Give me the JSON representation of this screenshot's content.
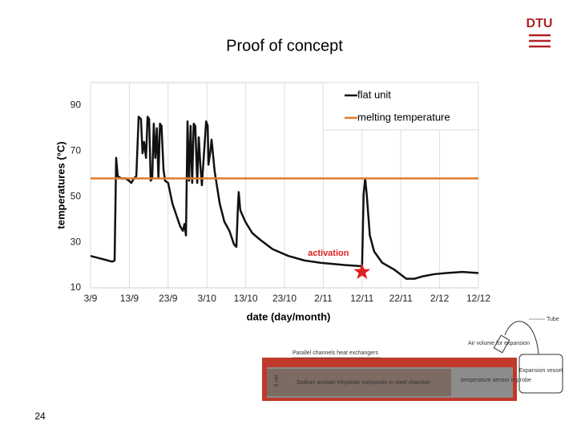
{
  "slide": {
    "title": "Proof of concept",
    "page_number": "24",
    "logo": "DTU"
  },
  "chart_data": {
    "type": "line",
    "ylabel": "temperatures (°C)",
    "xlabel": "date (day/month)",
    "xlim": [
      0,
      100
    ],
    "ylim": [
      10,
      100
    ],
    "xticks": [
      {
        "value": 0,
        "label": "3/9"
      },
      {
        "value": 10,
        "label": "13/9"
      },
      {
        "value": 20,
        "label": "23/9"
      },
      {
        "value": 30,
        "label": "3/10"
      },
      {
        "value": 40,
        "label": "13/10"
      },
      {
        "value": 50,
        "label": "23/10"
      },
      {
        "value": 60,
        "label": "2/11"
      },
      {
        "value": 70,
        "label": "12/11"
      },
      {
        "value": 80,
        "label": "22/11"
      },
      {
        "value": 90,
        "label": "2/12"
      },
      {
        "value": 100,
        "label": "12/12"
      }
    ],
    "yticks": [
      10,
      30,
      50,
      70,
      90
    ],
    "grid": "x",
    "legend": "top-right",
    "series": [
      {
        "name": "flat unit",
        "color": "#111111",
        "x": [
          0,
          5.6,
          6.2,
          6.6,
          7,
          7.9,
          9,
          9.9,
          10.5,
          11.2,
          11.8,
          12.4,
          13,
          13.4,
          13.8,
          14.3,
          14.7,
          15.1,
          15.5,
          15.9,
          16.3,
          16.7,
          17.1,
          17.5,
          17.9,
          18.3,
          18.8,
          19.2,
          20,
          21.1,
          22.1,
          23.1,
          23.8,
          24.2,
          24.6,
          25,
          25.4,
          25.8,
          26.2,
          26.6,
          27,
          27.5,
          27.9,
          28.3,
          28.7,
          29.8,
          30.2,
          30.4,
          30.9,
          31.2,
          32,
          33.3,
          34.5,
          35.8,
          37,
          37.6,
          38,
          38.2,
          38.6,
          39.9,
          41.7,
          43.8,
          46.9,
          51,
          55.2,
          59.3,
          65.5,
          70,
          70.4,
          70.8,
          71.2,
          72,
          73.1,
          75.2,
          78.3,
          81.4,
          83.5,
          85.5,
          88.6,
          91.7,
          95.9,
          100
        ],
        "values": [
          24,
          21.5,
          22,
          67,
          59,
          58,
          58,
          57,
          56,
          58,
          59,
          85,
          84,
          69,
          74,
          67,
          85,
          84,
          57,
          58,
          82,
          67,
          80,
          58,
          82,
          81,
          62,
          57,
          56,
          47,
          42,
          37,
          35,
          38,
          33,
          83,
          57,
          81,
          56,
          82,
          81,
          56,
          76,
          64,
          55,
          83,
          81,
          64,
          70,
          75,
          61,
          47,
          39,
          35,
          29,
          28,
          46,
          52,
          44,
          39,
          34,
          31,
          27,
          24,
          22,
          21,
          20,
          19.5,
          51,
          58,
          51,
          33,
          26,
          21,
          18,
          14,
          14,
          15,
          16,
          16.5,
          17,
          16.5
        ]
      },
      {
        "name": "melting temperature",
        "color": "#e07b28",
        "x": [
          0,
          100
        ],
        "values": [
          58,
          58
        ]
      }
    ],
    "annotations": [
      {
        "text": "activation",
        "x": 70,
        "y": 17,
        "color": "#e02020"
      }
    ]
  },
  "diagram": {
    "labels": {
      "heat_exchangers": "Parallel channels heat exchangers",
      "height": "3 cm",
      "chamber": "Sodium acetate trihydrate composite in steel chamber",
      "air": "Air volume for expansion",
      "tube": "Tube",
      "vessel": "Expansion vessel",
      "sensor": "temperature sensor in probe"
    }
  }
}
